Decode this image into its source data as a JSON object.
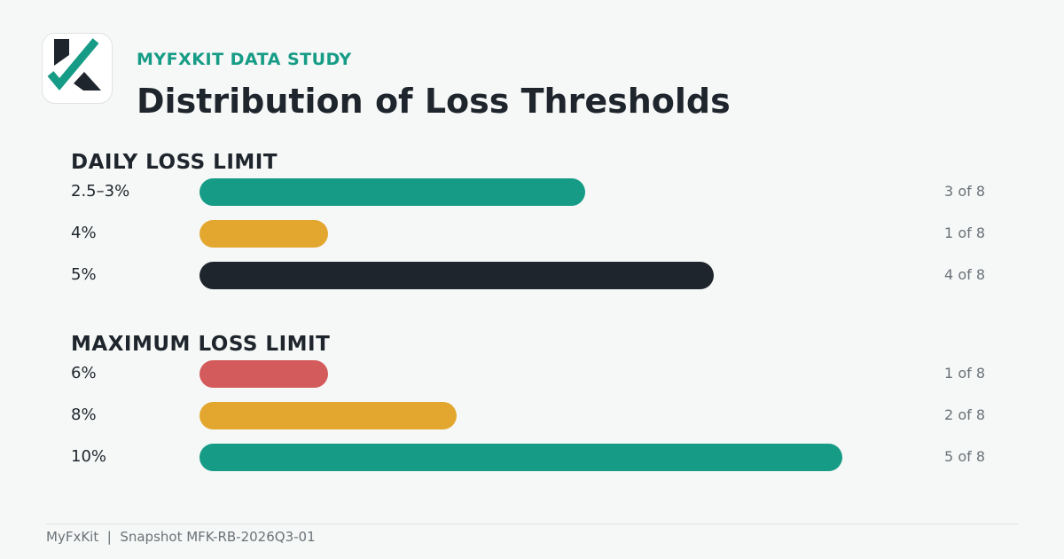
{
  "header": {
    "eyebrow": "MYFXKIT DATA STUDY",
    "title": "Distribution of Loss Thresholds"
  },
  "logo": {
    "icon": "myfxkit-k-check-logo",
    "colors": {
      "dark": "#1e252c",
      "accent": "#169c86"
    }
  },
  "chart_data": [
    {
      "type": "bar",
      "orientation": "horizontal",
      "title": "DAILY LOSS LIMIT",
      "total": 8,
      "xlim": [
        0,
        6
      ],
      "categories": [
        "2.5–3%",
        "4%",
        "5%"
      ],
      "values": [
        3,
        1,
        4
      ],
      "value_labels": [
        "3 of 8",
        "1 of 8",
        "4 of 8"
      ],
      "colors": [
        "#169c86",
        "#e3a72f",
        "#1e252c"
      ]
    },
    {
      "type": "bar",
      "orientation": "horizontal",
      "title": "MAXIMUM LOSS LIMIT",
      "total": 8,
      "xlim": [
        0,
        6
      ],
      "categories": [
        "6%",
        "8%",
        "10%"
      ],
      "values": [
        1,
        2,
        5
      ],
      "value_labels": [
        "1 of 8",
        "2 of 8",
        "5 of 8"
      ],
      "colors": [
        "#d45b5b",
        "#e3a72f",
        "#169c86"
      ]
    }
  ],
  "footer": {
    "text": "MyFxKit  |  Snapshot MFK-RB-2026Q3-01"
  }
}
